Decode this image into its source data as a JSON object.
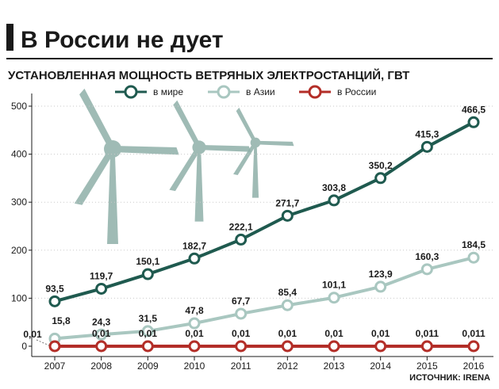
{
  "title": "В России не дует",
  "subtitle": "УСТАНОВЛЕННАЯ МОЩНОСТЬ ВЕТРЯНЫХ ЭЛЕКТРОСТАНЦИЙ, ГВТ",
  "source": "ИСТОЧНИК: IRENA",
  "colors": {
    "world": "#1f5a4f",
    "asia": "#a9c7c0",
    "russia": "#b32e28",
    "windmill": "#8fb0a9",
    "grid": "#c9c9c9",
    "axis": "#1a1a1a"
  },
  "icons": [
    "windmill-icon"
  ],
  "chart_data": {
    "type": "line",
    "title": "УСТАНОВЛЕННАЯ МОЩНОСТЬ ВЕТРЯНЫХ ЭЛЕКТРОСТАНЦИЙ, ГВТ",
    "x": [
      "2007",
      "2008",
      "2009",
      "2010",
      "2011",
      "2012",
      "2013",
      "2014",
      "2015",
      "2016"
    ],
    "ylim": [
      0,
      500
    ],
    "yticks": [
      0,
      100,
      200,
      300,
      400,
      500
    ],
    "grid": true,
    "legend_position": "top",
    "series": [
      {
        "name": "в мире",
        "color": "#1f5a4f",
        "values": [
          93.5,
          119.7,
          150.1,
          182.7,
          222.1,
          271.7,
          303.8,
          350.2,
          415.3,
          466.5
        ],
        "labels": [
          "93,5",
          "119,7",
          "150,1",
          "182,7",
          "222,1",
          "271,7",
          "303,8",
          "350,2",
          "415,3",
          "466,5"
        ]
      },
      {
        "name": "в Азии",
        "color": "#a9c7c0",
        "values": [
          15.8,
          24.3,
          31.5,
          47.8,
          67.7,
          85.4,
          101.1,
          123.9,
          160.3,
          184.5
        ],
        "labels": [
          "15,8",
          "24,3",
          "31,5",
          "47,8",
          "67,7",
          "85,4",
          "101,1",
          "123,9",
          "160,3",
          "184,5"
        ]
      },
      {
        "name": "в России",
        "color": "#b32e28",
        "values": [
          0.01,
          0.01,
          0.01,
          0.01,
          0.01,
          0.01,
          0.01,
          0.01,
          0.011,
          0.011
        ],
        "labels": [
          "0,01",
          "0,01",
          "0,01",
          "0,01",
          "0,01",
          "0,01",
          "0,01",
          "0,01",
          "0,011",
          "0,011"
        ]
      }
    ]
  }
}
